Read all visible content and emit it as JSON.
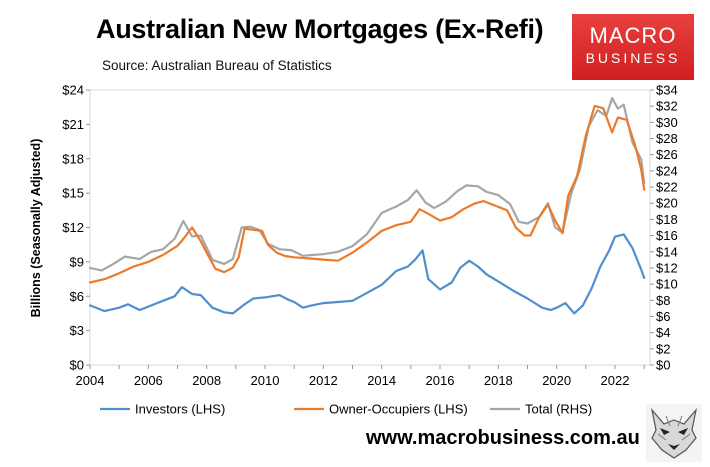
{
  "header": {
    "title": "Australian New Mortgages (Ex-Refi)",
    "subtitle": "Source: Australian Bureau of Statistics"
  },
  "logo": {
    "line1": "MACRO",
    "line2": "BUSINESS"
  },
  "footer": {
    "website": "www.macrobusiness.com.au"
  },
  "colors": {
    "investors": "#4f8fd0",
    "owner_occupiers": "#ec7a2c",
    "total": "#a6a6a6",
    "logo_red": "#d9262b"
  },
  "chart_data": {
    "type": "line",
    "title": "Australian New Mortgages (Ex-Refi)",
    "ylabel": "Billions (Seasonally Adjusted)",
    "xlim": [
      2004,
      2023.2
    ],
    "ylim_left": [
      0,
      24
    ],
    "ylim_right": [
      0,
      34
    ],
    "x_ticks": [
      "2004",
      "2006",
      "2008",
      "2010",
      "2012",
      "2014",
      "2016",
      "2018",
      "2020",
      "2022"
    ],
    "y_ticks_left": [
      "$0",
      "$3",
      "$6",
      "$9",
      "$12",
      "$15",
      "$18",
      "$21",
      "$24"
    ],
    "y_ticks_right": [
      "$0",
      "$2",
      "$4",
      "$6",
      "$8",
      "$10",
      "$12",
      "$14",
      "$16",
      "$18",
      "$20",
      "$22",
      "$24",
      "$26",
      "$28",
      "$30",
      "$32",
      "$34"
    ],
    "legend_position": "bottom",
    "grid": false,
    "series": [
      {
        "name": "Investors (LHS)",
        "axis": "left",
        "color": "#4f8fd0",
        "x": [
          2004.0,
          2004.5,
          2005.0,
          2005.3,
          2005.7,
          2006.0,
          2006.5,
          2006.9,
          2007.15,
          2007.5,
          2007.8,
          2008.2,
          2008.6,
          2008.9,
          2009.3,
          2009.6,
          2010.0,
          2010.5,
          2010.8,
          2011.0,
          2011.3,
          2011.6,
          2012.0,
          2012.5,
          2013.0,
          2013.5,
          2014.0,
          2014.5,
          2014.9,
          2015.15,
          2015.4,
          2015.6,
          2016.0,
          2016.4,
          2016.7,
          2017.0,
          2017.3,
          2017.6,
          2018.0,
          2018.5,
          2019.0,
          2019.5,
          2019.8,
          2020.0,
          2020.3,
          2020.6,
          2020.9,
          2021.2,
          2021.5,
          2021.8,
          2022.0,
          2022.3,
          2022.6,
          2022.9,
          2023.0
        ],
        "values": [
          5.2,
          4.7,
          5.0,
          5.3,
          4.8,
          5.1,
          5.6,
          6.0,
          6.8,
          6.2,
          6.1,
          5.0,
          4.6,
          4.5,
          5.3,
          5.8,
          5.9,
          6.1,
          5.7,
          5.5,
          5.0,
          5.2,
          5.4,
          5.5,
          5.6,
          6.3,
          7.0,
          8.2,
          8.6,
          9.2,
          10.0,
          7.5,
          6.6,
          7.2,
          8.5,
          9.1,
          8.6,
          7.9,
          7.3,
          6.5,
          5.8,
          5.0,
          4.8,
          5.0,
          5.4,
          4.5,
          5.2,
          6.7,
          8.6,
          10.0,
          11.2,
          11.4,
          10.2,
          8.3,
          7.6
        ]
      },
      {
        "name": "Owner-Occupiers (LHS)",
        "axis": "left",
        "color": "#ec7a2c",
        "x": [
          2004.0,
          2004.5,
          2005.0,
          2005.5,
          2006.0,
          2006.5,
          2007.0,
          2007.2,
          2007.5,
          2007.8,
          2008.0,
          2008.3,
          2008.6,
          2008.9,
          2009.1,
          2009.3,
          2009.6,
          2009.9,
          2010.1,
          2010.4,
          2010.7,
          2011.0,
          2011.5,
          2012.0,
          2012.5,
          2013.0,
          2013.5,
          2014.0,
          2014.5,
          2015.0,
          2015.3,
          2015.6,
          2016.0,
          2016.4,
          2016.8,
          2017.2,
          2017.5,
          2018.0,
          2018.3,
          2018.6,
          2018.9,
          2019.1,
          2019.4,
          2019.7,
          2019.95,
          2020.2,
          2020.4,
          2020.7,
          2021.0,
          2021.3,
          2021.6,
          2021.9,
          2022.1,
          2022.4,
          2022.7,
          2022.9,
          2023.0
        ],
        "values": [
          7.2,
          7.5,
          8.0,
          8.6,
          9.0,
          9.6,
          10.4,
          11.0,
          12.0,
          10.8,
          9.8,
          8.4,
          8.1,
          8.5,
          9.4,
          11.9,
          11.8,
          11.7,
          10.5,
          9.8,
          9.5,
          9.4,
          9.3,
          9.2,
          9.1,
          9.8,
          10.7,
          11.7,
          12.2,
          12.5,
          13.6,
          13.2,
          12.6,
          12.9,
          13.6,
          14.1,
          14.3,
          13.8,
          13.5,
          12.0,
          11.3,
          11.3,
          12.9,
          14.0,
          12.6,
          11.5,
          14.8,
          16.5,
          20.0,
          22.6,
          22.4,
          20.3,
          21.6,
          21.4,
          19.1,
          17.0,
          15.3
        ]
      },
      {
        "name": "Total (RHS)",
        "axis": "right",
        "color": "#a6a6a6",
        "x": [
          2004.0,
          2004.4,
          2004.8,
          2005.2,
          2005.7,
          2006.1,
          2006.5,
          2006.9,
          2007.2,
          2007.5,
          2007.8,
          2008.2,
          2008.6,
          2008.9,
          2009.2,
          2009.5,
          2009.8,
          2010.1,
          2010.5,
          2010.9,
          2011.3,
          2011.6,
          2012.0,
          2012.5,
          2013.0,
          2013.5,
          2014.0,
          2014.5,
          2014.9,
          2015.2,
          2015.5,
          2015.8,
          2016.2,
          2016.6,
          2016.9,
          2017.3,
          2017.6,
          2018.0,
          2018.4,
          2018.7,
          2019.0,
          2019.4,
          2019.7,
          2019.95,
          2020.2,
          2020.5,
          2020.8,
          2021.1,
          2021.4,
          2021.7,
          2021.9,
          2022.1,
          2022.3,
          2022.6,
          2022.9,
          2023.0
        ],
        "values": [
          12.0,
          11.7,
          12.5,
          13.4,
          13.1,
          14.0,
          14.3,
          15.6,
          17.8,
          15.9,
          16.0,
          13.0,
          12.5,
          13.1,
          17.0,
          17.1,
          16.7,
          15.0,
          14.3,
          14.2,
          13.5,
          13.6,
          13.7,
          14.0,
          14.7,
          16.2,
          18.8,
          19.6,
          20.4,
          21.6,
          20.1,
          19.4,
          20.2,
          21.5,
          22.2,
          22.1,
          21.4,
          21.0,
          19.9,
          17.7,
          17.5,
          18.3,
          20.0,
          17.0,
          16.4,
          21.2,
          24.2,
          29.5,
          31.5,
          30.8,
          33.0,
          31.7,
          32.2,
          27.5,
          25.4,
          22.5
        ]
      }
    ]
  }
}
